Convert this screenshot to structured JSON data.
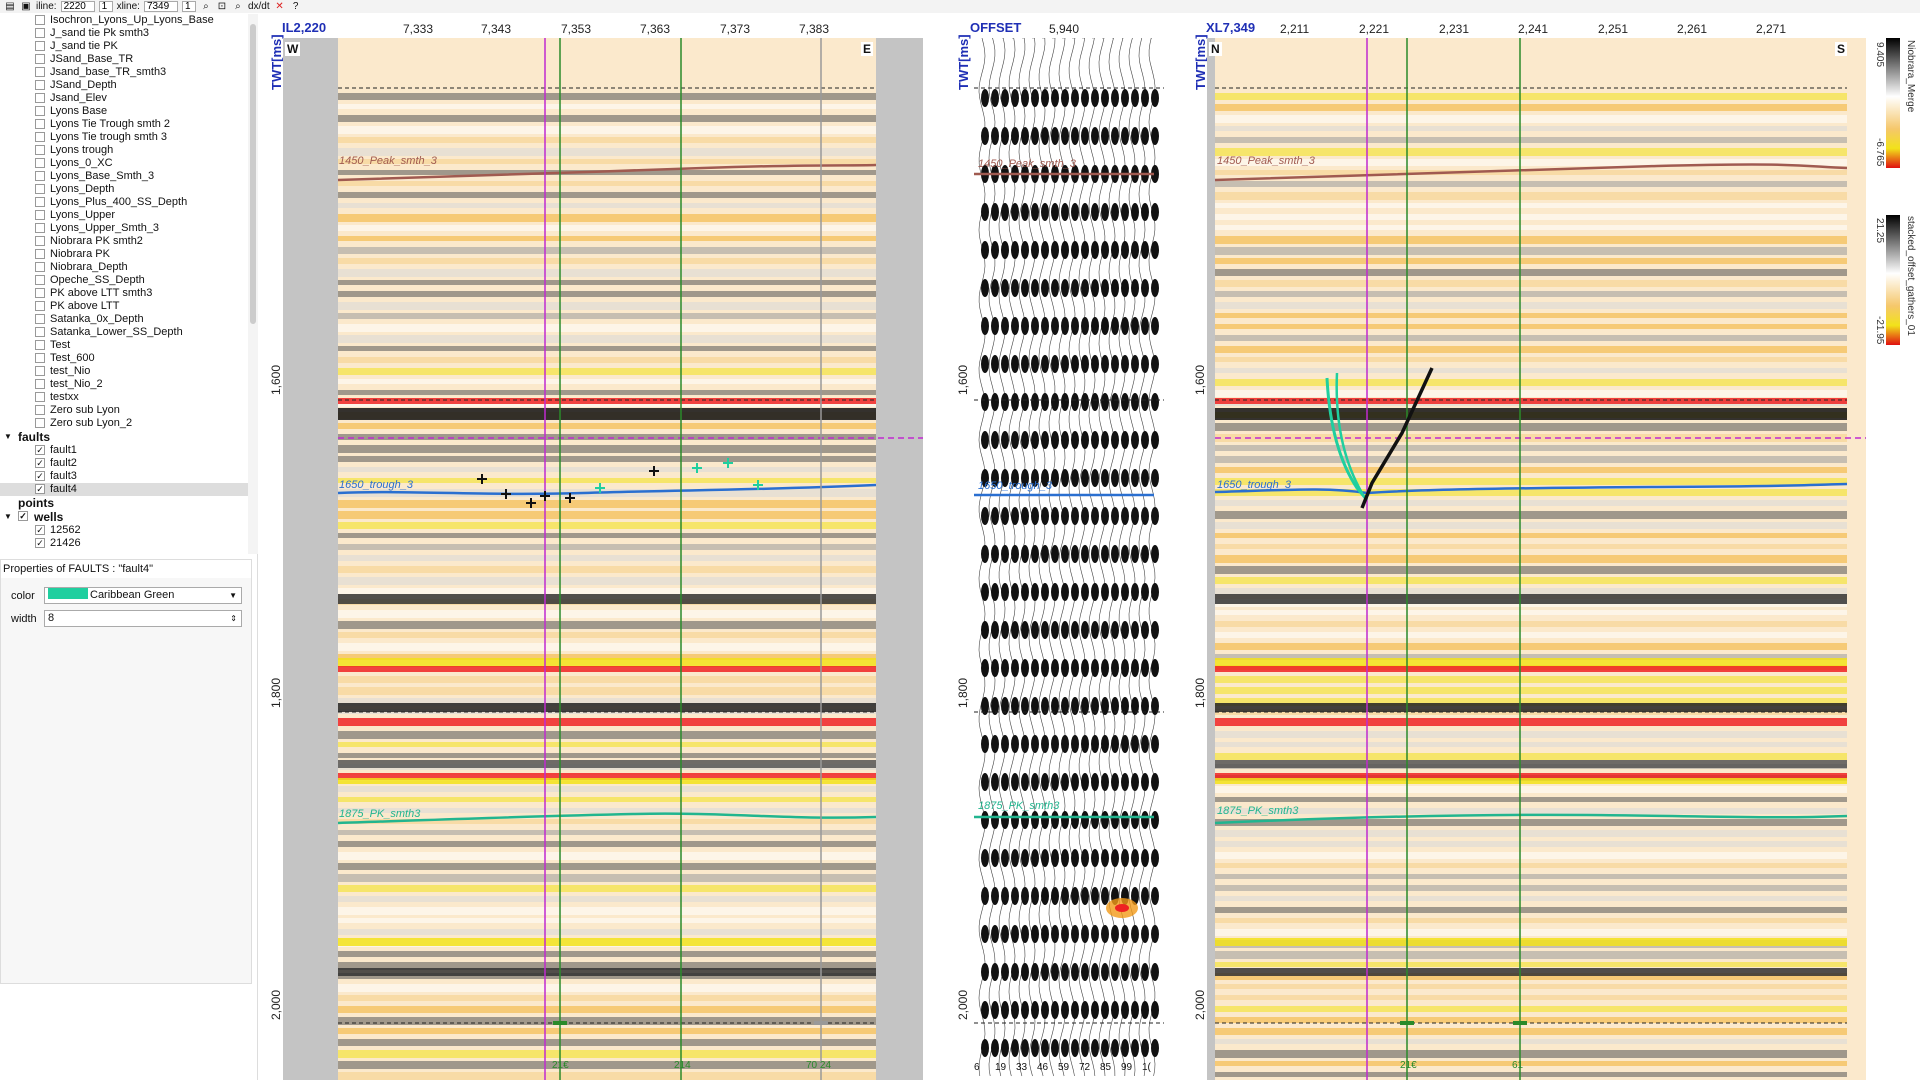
{
  "toolbar": {
    "iline_label": "iline:",
    "iline_value": "2220",
    "iline_step": "1",
    "xline_label": "xline:",
    "xline_value": "7349",
    "xline_step": "1",
    "dxdt_label": "dx/dt",
    "help_label": "?"
  },
  "tree": {
    "horizons": [
      "Isochron_Lyons_Up_Lyons_Base",
      "J_sand tie Pk smth3",
      "J_sand tie PK",
      "JSand_Base_TR",
      "Jsand_base_TR_smth3",
      "JSand_Depth",
      "Jsand_Elev",
      "Lyons Base",
      "Lyons Tie Trough smth 2",
      "Lyons Tie trough smth 3",
      "Lyons trough",
      "Lyons_0_XC",
      "Lyons_Base_Smth_3",
      "Lyons_Depth",
      "Lyons_Plus_400_SS_Depth",
      "Lyons_Upper",
      "Lyons_Upper_Smth_3",
      "Niobrara PK smth2",
      "Niobrara PK",
      "Niobrara_Depth",
      "Opeche_SS_Depth",
      "PK above LTT smth3",
      "PK above LTT",
      "Satanka_0x_Depth",
      "Satanka_Lower_SS_Depth",
      "Test",
      "Test_600",
      "test_Nio",
      "test_Nio_2",
      "testxx",
      "Zero sub Lyon",
      "Zero sub Lyon_2"
    ],
    "faults_group": "faults",
    "faults": [
      "fault1",
      "fault2",
      "fault3",
      "fault4"
    ],
    "points_group": "points",
    "wells_group": "wells",
    "wells": [
      "12562",
      "21426"
    ],
    "check": "✓"
  },
  "props": {
    "title": "Properties of FAULTS : \"fault4\"",
    "color_label": "color",
    "color_value": "Caribbean Green",
    "color_hex": "#1fcf9f",
    "width_label": "width",
    "width_value": "8"
  },
  "panel_il": {
    "title": "IL2,220",
    "ticks": [
      "7,333",
      "7,343",
      "7,353",
      "7,363",
      "7,373",
      "7,383"
    ],
    "left_dir": "W",
    "right_dir": "E",
    "twt_label": "TWT[ms]",
    "y_ticks": [
      "1,600",
      "1,800",
      "2,000"
    ],
    "well_labels": [
      "21€",
      "214",
      "70 24"
    ]
  },
  "panel_offset": {
    "title": "OFFSET",
    "tick": "5,940",
    "twt_label": "TWT[ms]",
    "y_ticks": [
      "1,600",
      "1,800",
      "2,000"
    ],
    "bottom_labels": [
      "6",
      "19",
      "33",
      "46",
      "59",
      "72",
      "85",
      "99",
      "1("
    ]
  },
  "panel_xl": {
    "title": "XL7,349",
    "ticks": [
      "2,211",
      "2,221",
      "2,231",
      "2,241",
      "2,251",
      "2,261",
      "2,271"
    ],
    "left_dir": "N",
    "right_dir": "S",
    "twt_label": "TWT[ms]",
    "y_ticks": [
      "1,600",
      "1,800",
      "2,000"
    ],
    "well_labels": [
      "21€",
      "61"
    ]
  },
  "horizon_labels": {
    "peak": "1450_Peak_smth_3",
    "trough": "1650_trough_3",
    "pk3": "1875_PK_smth3"
  },
  "legend": {
    "top_name": "Niobrara_Merge",
    "top_max": "9.405",
    "top_min": "-6.765",
    "bottom_name": "stacked_offset_gathers_01",
    "bottom_max": "21.25",
    "bottom_min": "-21.95"
  },
  "colors": {
    "horizon_peak": "#a05a50",
    "horizon_trough": "#2a6fd0",
    "horizon_pk": "#22b58f",
    "well_line": "#2a8a2a",
    "inline_marker": "#c02ad0",
    "fault_black": "#111111",
    "fault_green": "#1fcf9f"
  }
}
